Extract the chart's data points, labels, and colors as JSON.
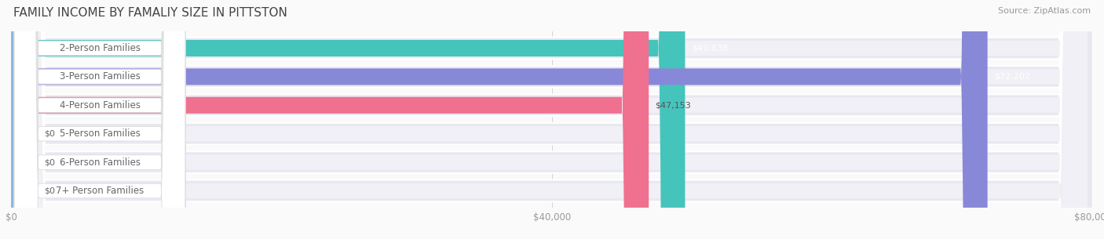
{
  "title": "FAMILY INCOME BY FAMALIY SIZE IN PITTSTON",
  "source": "Source: ZipAtlas.com",
  "categories": [
    "2-Person Families",
    "3-Person Families",
    "4-Person Families",
    "5-Person Families",
    "6-Person Families",
    "7+ Person Families"
  ],
  "values": [
    49838,
    72202,
    47153,
    0,
    0,
    0
  ],
  "bar_colors": [
    "#45c4bc",
    "#8888d8",
    "#f07090",
    "#f5c898",
    "#f0a0a0",
    "#90b8e0"
  ],
  "value_label_colors": [
    "#ffffff",
    "#ffffff",
    "#555555",
    "#555555",
    "#555555",
    "#555555"
  ],
  "row_bg_color": "#e8e8f0",
  "row_inner_color": "#f0f0f6",
  "label_box_color": "#ffffff",
  "label_text_color": "#666666",
  "axis_text_color": "#999999",
  "title_color": "#444444",
  "source_color": "#999999",
  "bg_color": "#fafafa",
  "xlim": [
    0,
    80000
  ],
  "xtick_labels": [
    "$0",
    "$40,000",
    "$80,000"
  ],
  "title_fontsize": 11,
  "source_fontsize": 8,
  "label_fontsize": 8.5,
  "value_fontsize": 8,
  "figsize": [
    14.06,
    3.05
  ],
  "dpi": 100
}
